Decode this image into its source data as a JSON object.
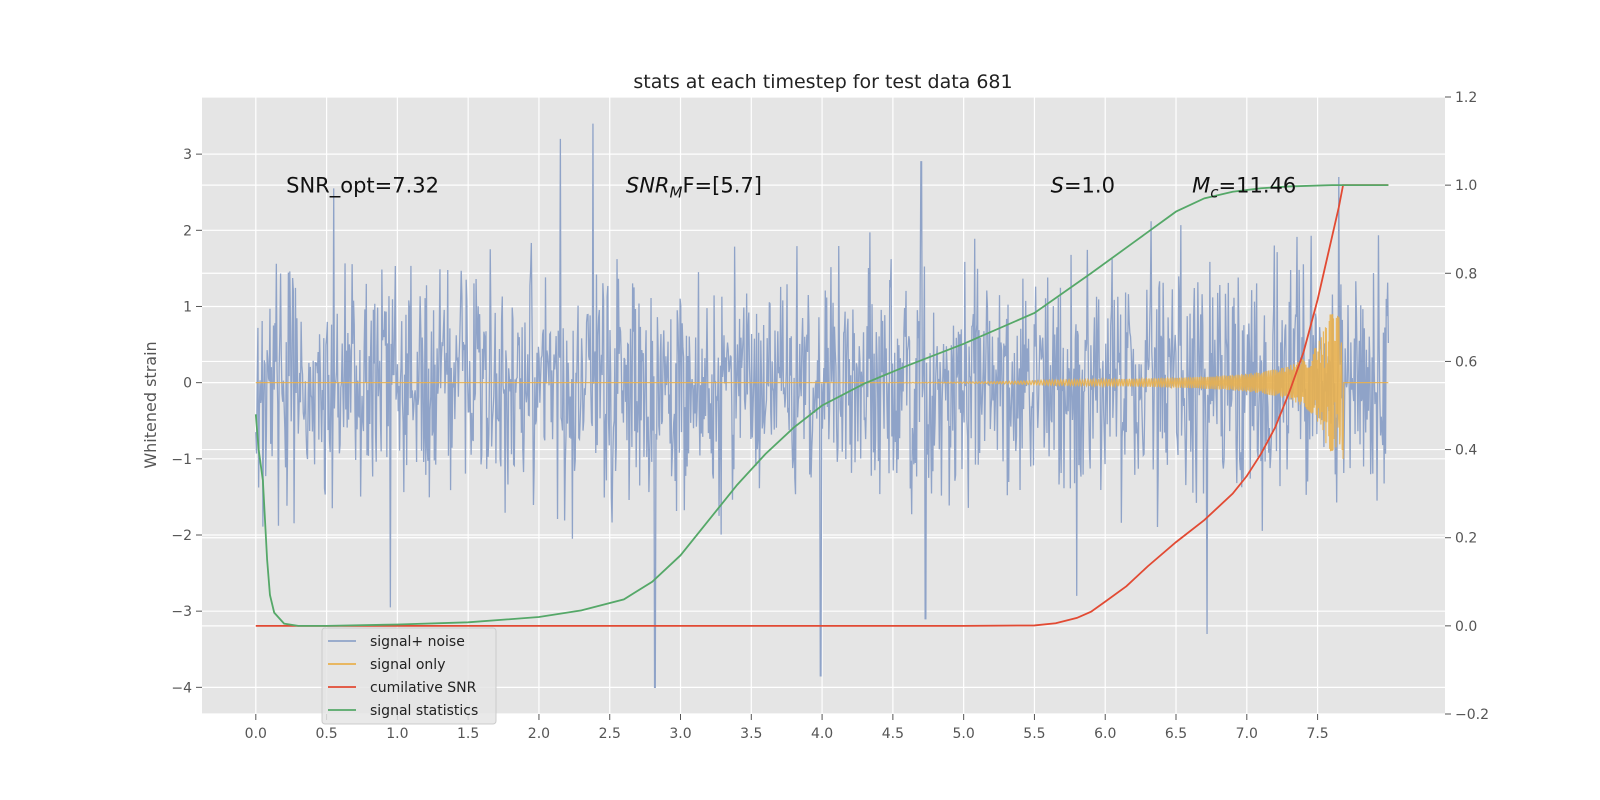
{
  "chart_data": {
    "type": "line",
    "title": "stats at each timestep for test data 681",
    "ylabel": "Whitened strain",
    "xlim": [
      -0.38,
      8.4
    ],
    "ylim": [
      -4.35,
      3.75
    ],
    "y2lim": [
      -0.2,
      1.2
    ],
    "xticks": [
      0.0,
      0.5,
      1.0,
      1.5,
      2.0,
      2.5,
      3.0,
      3.5,
      4.0,
      4.5,
      5.0,
      5.5,
      6.0,
      6.5,
      7.0,
      7.5
    ],
    "yticks": [
      -4,
      -3,
      -2,
      -1,
      0,
      1,
      2,
      3
    ],
    "y2ticks": [
      -0.2,
      0.0,
      0.2,
      0.4,
      0.6,
      0.8,
      1.0,
      1.2
    ],
    "grid": true,
    "legend_loc": "lower-left",
    "annotations": [
      {
        "text": "SNR_opt=7.32",
        "x": 0.2,
        "y": 2.6
      },
      {
        "text": "SNR_MF=[5.7]",
        "x": 2.6,
        "y": 2.6,
        "base": "SNR",
        "sub": "M",
        "rest": "F=[5.7]"
      },
      {
        "text": "S=1.0",
        "x": 5.6,
        "y": 2.6,
        "base": "S",
        "sub": "",
        "rest": "=1.0"
      },
      {
        "text": "M_c=11.46",
        "x": 6.6,
        "y": 2.6,
        "base": "M",
        "sub": "c",
        "rest": "=11.46"
      }
    ],
    "series": [
      {
        "name": "signal+ noise",
        "color": "#8fa3c8",
        "axis": "left",
        "kind": "noise",
        "x_start": 0.0,
        "x_end": 8.0,
        "n_points": 1600,
        "amp_min": -2.2,
        "amp_max": 2.4,
        "spikes": [
          [
            0.55,
            2.55
          ],
          [
            2.15,
            3.2
          ],
          [
            2.38,
            3.4
          ],
          [
            2.82,
            -4.0
          ],
          [
            3.99,
            -3.85
          ],
          [
            4.7,
            2.9
          ],
          [
            4.73,
            -3.1
          ],
          [
            6.72,
            -3.3
          ],
          [
            7.65,
            2.7
          ],
          [
            0.95,
            -2.95
          ],
          [
            5.8,
            -2.8
          ]
        ]
      },
      {
        "name": "signal only",
        "color": "#e8b04f",
        "axis": "left",
        "kind": "chirp",
        "x_start": 0.0,
        "x_end": 7.68,
        "x_tail": 8.0,
        "peak_amp": 0.9,
        "neg_amp": -1.0
      },
      {
        "name": "cumilative SNR",
        "color": "#e24a33",
        "axis": "right",
        "x": [
          0.0,
          1.0,
          2.0,
          3.0,
          4.0,
          5.0,
          5.5,
          5.65,
          5.8,
          5.9,
          6.0,
          6.15,
          6.3,
          6.5,
          6.7,
          6.9,
          7.0,
          7.1,
          7.2,
          7.3,
          7.4,
          7.5,
          7.55,
          7.6,
          7.65,
          7.68,
          8.0
        ],
        "y": [
          0.0,
          0.0,
          0.0,
          0.0,
          0.0,
          0.0,
          0.001,
          0.006,
          0.018,
          0.032,
          0.055,
          0.09,
          0.135,
          0.19,
          0.24,
          0.3,
          0.34,
          0.39,
          0.45,
          0.53,
          0.62,
          0.74,
          0.81,
          0.88,
          0.95,
          1.0,
          1.0
        ]
      },
      {
        "name": "signal statistics",
        "color": "#55a868",
        "axis": "right",
        "x": [
          0.0,
          0.02,
          0.05,
          0.08,
          0.1,
          0.13,
          0.2,
          0.3,
          0.5,
          1.0,
          1.5,
          2.0,
          2.3,
          2.6,
          2.8,
          3.0,
          3.2,
          3.4,
          3.6,
          3.8,
          4.0,
          4.3,
          4.6,
          5.0,
          5.5,
          5.9,
          6.2,
          6.5,
          6.7,
          6.9,
          7.1,
          7.3,
          7.6,
          8.0
        ],
        "y": [
          0.48,
          0.4,
          0.33,
          0.15,
          0.07,
          0.03,
          0.005,
          0.0,
          0.0,
          0.003,
          0.008,
          0.02,
          0.035,
          0.06,
          0.1,
          0.16,
          0.24,
          0.32,
          0.39,
          0.45,
          0.5,
          0.55,
          0.59,
          0.64,
          0.71,
          0.8,
          0.87,
          0.94,
          0.97,
          0.985,
          0.993,
          0.997,
          1.0,
          1.0
        ]
      }
    ]
  }
}
